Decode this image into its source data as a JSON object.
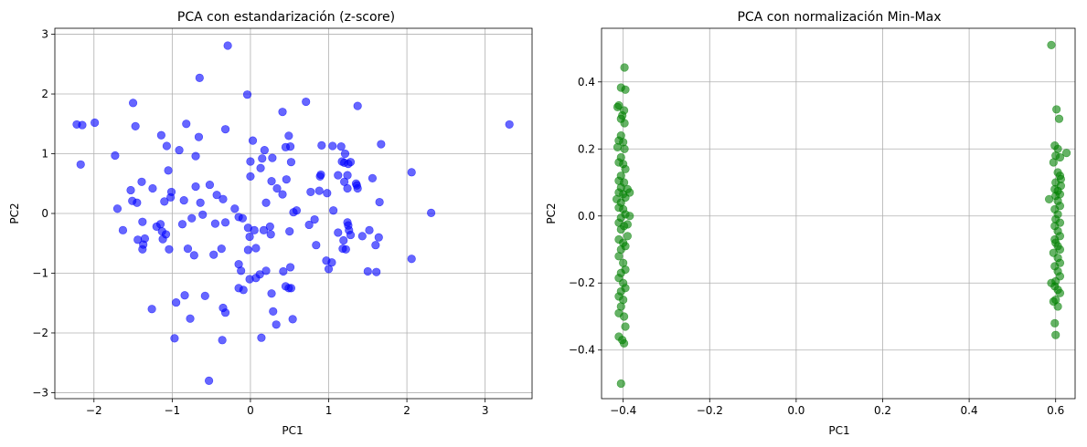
{
  "chart_data": [
    {
      "type": "scatter",
      "title": "PCA con estandarización (z-score)",
      "xlabel": "PC1",
      "ylabel": "PC2",
      "xlim": [
        -2.5,
        3.6
      ],
      "ylim": [
        -3.1,
        3.1
      ],
      "xticks": [
        -2,
        -1,
        0,
        1,
        2,
        3
      ],
      "yticks": [
        -3,
        -2,
        -1,
        0,
        1,
        2,
        3
      ],
      "grid": true,
      "color": "#0000ff",
      "alpha": 0.6,
      "points": [
        [
          -2.22,
          1.49
        ],
        [
          -2.15,
          1.48
        ],
        [
          -1.99,
          1.52
        ],
        [
          -2.17,
          0.82
        ],
        [
          -1.5,
          1.85
        ],
        [
          -1.47,
          1.46
        ],
        [
          -1.73,
          0.97
        ],
        [
          -1.14,
          1.31
        ],
        [
          -1.07,
          1.13
        ],
        [
          -0.82,
          1.5
        ],
        [
          -0.65,
          2.27
        ],
        [
          -0.29,
          2.81
        ],
        [
          -0.04,
          1.99
        ],
        [
          -0.32,
          1.41
        ],
        [
          -0.66,
          1.28
        ],
        [
          -0.91,
          1.06
        ],
        [
          -0.7,
          0.96
        ],
        [
          -1.05,
          0.72
        ],
        [
          -1.39,
          0.53
        ],
        [
          -1.53,
          0.39
        ],
        [
          -1.25,
          0.42
        ],
        [
          -1.51,
          0.21
        ],
        [
          -1.45,
          0.18
        ],
        [
          -1.7,
          0.08
        ],
        [
          -1.63,
          -0.28
        ],
        [
          -1.38,
          -0.14
        ],
        [
          -1.1,
          0.2
        ],
        [
          -1.01,
          0.36
        ],
        [
          -1.02,
          0.27
        ],
        [
          -0.85,
          0.22
        ],
        [
          -0.7,
          0.45
        ],
        [
          -0.52,
          0.48
        ],
        [
          -0.43,
          0.31
        ],
        [
          -0.35,
          0.24
        ],
        [
          -0.2,
          0.08
        ],
        [
          -0.64,
          0.18
        ],
        [
          -0.61,
          -0.02
        ],
        [
          -0.75,
          -0.08
        ],
        [
          -0.87,
          -0.18
        ],
        [
          -1.15,
          -0.18
        ],
        [
          -1.2,
          -0.22
        ],
        [
          -1.13,
          -0.3
        ],
        [
          -1.08,
          -0.35
        ],
        [
          -1.37,
          -0.52
        ],
        [
          -1.38,
          -0.6
        ],
        [
          -1.35,
          -0.42
        ],
        [
          -1.44,
          -0.44
        ],
        [
          -1.12,
          -0.43
        ],
        [
          -1.04,
          -0.6
        ],
        [
          -0.8,
          -0.59
        ],
        [
          -0.72,
          -0.7
        ],
        [
          -0.47,
          -0.69
        ],
        [
          -0.37,
          -0.59
        ],
        [
          -0.45,
          -0.17
        ],
        [
          -0.32,
          -0.15
        ],
        [
          -0.15,
          -0.06
        ],
        [
          -0.1,
          -0.08
        ],
        [
          -0.03,
          -0.24
        ],
        [
          -0.01,
          -0.39
        ],
        [
          -0.03,
          -0.61
        ],
        [
          -0.15,
          -0.85
        ],
        [
          -0.12,
          -0.96
        ],
        [
          0.07,
          -0.58
        ],
        [
          0.05,
          -0.28
        ],
        [
          0.17,
          -0.28
        ],
        [
          0.25,
          -0.22
        ],
        [
          0.26,
          -0.35
        ],
        [
          0.0,
          0.62
        ],
        [
          0.0,
          0.87
        ],
        [
          0.15,
          0.92
        ],
        [
          0.13,
          0.76
        ],
        [
          0.28,
          0.93
        ],
        [
          0.27,
          0.54
        ],
        [
          0.18,
          1.06
        ],
        [
          0.03,
          1.22
        ],
        [
          0.2,
          0.18
        ],
        [
          0.41,
          0.32
        ],
        [
          0.34,
          0.42
        ],
        [
          0.46,
          0.57
        ],
        [
          0.52,
          0.86
        ],
        [
          0.45,
          1.11
        ],
        [
          0.51,
          1.12
        ],
        [
          0.49,
          1.3
        ],
        [
          0.41,
          1.7
        ],
        [
          0.71,
          1.87
        ],
        [
          0.91,
          1.14
        ],
        [
          1.05,
          1.13
        ],
        [
          1.16,
          1.12
        ],
        [
          1.21,
          1.0
        ],
        [
          1.2,
          0.85
        ],
        [
          1.28,
          0.86
        ],
        [
          1.25,
          0.83
        ],
        [
          1.17,
          0.87
        ],
        [
          1.12,
          0.64
        ],
        [
          1.24,
          0.64
        ],
        [
          1.35,
          0.5
        ],
        [
          1.36,
          0.47
        ],
        [
          1.37,
          1.8
        ],
        [
          1.67,
          1.16
        ],
        [
          1.56,
          0.59
        ],
        [
          1.37,
          0.42
        ],
        [
          1.2,
          0.53
        ],
        [
          1.24,
          0.42
        ],
        [
          1.65,
          0.19
        ],
        [
          0.98,
          0.34
        ],
        [
          0.9,
          0.65
        ],
        [
          0.88,
          0.38
        ],
        [
          0.77,
          0.36
        ],
        [
          0.89,
          0.62
        ],
        [
          0.59,
          0.05
        ],
        [
          0.55,
          0.02
        ],
        [
          0.75,
          -0.19
        ],
        [
          0.82,
          -0.1
        ],
        [
          0.84,
          -0.53
        ],
        [
          0.97,
          -0.79
        ],
        [
          1.0,
          -0.93
        ],
        [
          1.04,
          -0.82
        ],
        [
          1.12,
          -0.32
        ],
        [
          1.19,
          -0.45
        ],
        [
          1.18,
          -0.59
        ],
        [
          1.22,
          -0.6
        ],
        [
          1.25,
          -0.2
        ],
        [
          1.26,
          -0.28
        ],
        [
          1.28,
          -0.36
        ],
        [
          1.5,
          -0.97
        ],
        [
          1.61,
          -0.98
        ],
        [
          1.64,
          -0.4
        ],
        [
          1.6,
          -0.53
        ],
        [
          1.52,
          -0.28
        ],
        [
          1.43,
          -0.38
        ],
        [
          1.24,
          -0.15
        ],
        [
          1.06,
          0.05
        ],
        [
          0.5,
          -0.3
        ],
        [
          0.51,
          -0.9
        ],
        [
          0.42,
          -0.97
        ],
        [
          0.27,
          -1.34
        ],
        [
          0.29,
          -1.64
        ],
        [
          0.33,
          -1.86
        ],
        [
          0.54,
          -1.77
        ],
        [
          0.45,
          -1.22
        ],
        [
          0.2,
          -0.96
        ],
        [
          0.07,
          -1.08
        ],
        [
          -0.01,
          -1.1
        ],
        [
          -0.09,
          -1.28
        ],
        [
          -0.35,
          -1.58
        ],
        [
          -0.32,
          -1.66
        ],
        [
          -0.58,
          -1.38
        ],
        [
          -0.77,
          -1.76
        ],
        [
          -0.95,
          -1.49
        ],
        [
          -0.84,
          -1.37
        ],
        [
          -1.26,
          -1.6
        ],
        [
          -0.97,
          -2.09
        ],
        [
          -0.36,
          -2.12
        ],
        [
          0.14,
          -2.08
        ],
        [
          -0.53,
          -2.8
        ],
        [
          -0.15,
          -1.25
        ],
        [
          0.12,
          -1.02
        ],
        [
          0.49,
          -1.25
        ],
        [
          0.52,
          -1.25
        ],
        [
          2.06,
          0.69
        ],
        [
          2.31,
          0.01
        ],
        [
          2.06,
          -0.76
        ],
        [
          3.31,
          1.49
        ]
      ]
    },
    {
      "type": "scatter",
      "title": "PCA con normalización Min-Max",
      "xlabel": "PC1",
      "ylabel": "PC2",
      "xlim": [
        -0.45,
        0.645
      ],
      "ylim": [
        -0.545,
        0.56
      ],
      "xticks": [
        -0.4,
        -0.2,
        0.0,
        0.2,
        0.4,
        0.6
      ],
      "yticks": [
        -0.4,
        -0.2,
        0.0,
        0.2,
        0.4
      ],
      "grid": true,
      "color": "#008000",
      "alpha": 0.6,
      "points": [
        [
          -0.397,
          0.443
        ],
        [
          -0.405,
          0.383
        ],
        [
          -0.395,
          0.377
        ],
        [
          -0.41,
          0.33
        ],
        [
          -0.413,
          0.325
        ],
        [
          -0.398,
          0.315
        ],
        [
          -0.402,
          0.3
        ],
        [
          -0.405,
          0.29
        ],
        [
          -0.397,
          0.277
        ],
        [
          -0.405,
          0.24
        ],
        [
          -0.41,
          0.225
        ],
        [
          -0.4,
          0.22
        ],
        [
          -0.413,
          0.205
        ],
        [
          -0.397,
          0.2
        ],
        [
          -0.405,
          0.175
        ],
        [
          -0.41,
          0.16
        ],
        [
          -0.4,
          0.155
        ],
        [
          -0.395,
          0.14
        ],
        [
          -0.405,
          0.12
        ],
        [
          -0.41,
          0.105
        ],
        [
          -0.398,
          0.1
        ],
        [
          -0.405,
          0.085
        ],
        [
          -0.39,
          0.08
        ],
        [
          -0.41,
          0.07
        ],
        [
          -0.4,
          0.065
        ],
        [
          -0.395,
          0.055
        ],
        [
          -0.405,
          0.04
        ],
        [
          -0.41,
          0.025
        ],
        [
          -0.4,
          0.02
        ],
        [
          -0.395,
          0.005
        ],
        [
          -0.405,
          -0.005
        ],
        [
          -0.41,
          -0.02
        ],
        [
          -0.398,
          -0.03
        ],
        [
          -0.405,
          -0.04
        ],
        [
          -0.39,
          -0.06
        ],
        [
          -0.41,
          -0.07
        ],
        [
          -0.4,
          -0.08
        ],
        [
          -0.395,
          -0.09
        ],
        [
          -0.405,
          -0.1
        ],
        [
          -0.41,
          -0.12
        ],
        [
          -0.4,
          -0.14
        ],
        [
          -0.395,
          -0.16
        ],
        [
          -0.405,
          -0.17
        ],
        [
          -0.41,
          -0.185
        ],
        [
          -0.4,
          -0.2
        ],
        [
          -0.395,
          -0.215
        ],
        [
          -0.405,
          -0.225
        ],
        [
          -0.41,
          -0.24
        ],
        [
          -0.4,
          -0.25
        ],
        [
          -0.405,
          -0.27
        ],
        [
          -0.41,
          -0.29
        ],
        [
          -0.398,
          -0.3
        ],
        [
          -0.395,
          -0.33
        ],
        [
          -0.41,
          -0.36
        ],
        [
          -0.402,
          -0.37
        ],
        [
          -0.398,
          -0.38
        ],
        [
          -0.405,
          -0.5
        ],
        [
          -0.415,
          0.05
        ],
        [
          -0.385,
          0.07
        ],
        [
          -0.39,
          -0.025
        ],
        [
          -0.385,
          0.0
        ],
        [
          0.59,
          0.51
        ],
        [
          0.602,
          0.318
        ],
        [
          0.608,
          0.29
        ],
        [
          0.625,
          0.188
        ],
        [
          0.598,
          0.21
        ],
        [
          0.605,
          0.2
        ],
        [
          0.6,
          0.18
        ],
        [
          0.61,
          0.175
        ],
        [
          0.595,
          0.16
        ],
        [
          0.605,
          0.13
        ],
        [
          0.61,
          0.12
        ],
        [
          0.6,
          0.1
        ],
        [
          0.612,
          0.09
        ],
        [
          0.598,
          0.08
        ],
        [
          0.605,
          0.075
        ],
        [
          0.61,
          0.065
        ],
        [
          0.6,
          0.06
        ],
        [
          0.585,
          0.05
        ],
        [
          0.605,
          0.045
        ],
        [
          0.61,
          0.03
        ],
        [
          0.598,
          0.02
        ],
        [
          0.605,
          0.005
        ],
        [
          0.6,
          -0.01
        ],
        [
          0.61,
          -0.02
        ],
        [
          0.598,
          -0.03
        ],
        [
          0.605,
          -0.045
        ],
        [
          0.61,
          -0.06
        ],
        [
          0.598,
          -0.07
        ],
        [
          0.6,
          -0.08
        ],
        [
          0.605,
          -0.09
        ],
        [
          0.61,
          -0.1
        ],
        [
          0.595,
          -0.11
        ],
        [
          0.605,
          -0.125
        ],
        [
          0.61,
          -0.14
        ],
        [
          0.598,
          -0.15
        ],
        [
          0.605,
          -0.165
        ],
        [
          0.61,
          -0.18
        ],
        [
          0.6,
          -0.195
        ],
        [
          0.598,
          -0.21
        ],
        [
          0.605,
          -0.22
        ],
        [
          0.61,
          -0.23
        ],
        [
          0.6,
          -0.25
        ],
        [
          0.595,
          -0.255
        ],
        [
          0.605,
          -0.27
        ],
        [
          0.598,
          -0.32
        ],
        [
          0.6,
          -0.355
        ],
        [
          0.612,
          0.11
        ],
        [
          0.59,
          -0.2
        ]
      ]
    }
  ]
}
